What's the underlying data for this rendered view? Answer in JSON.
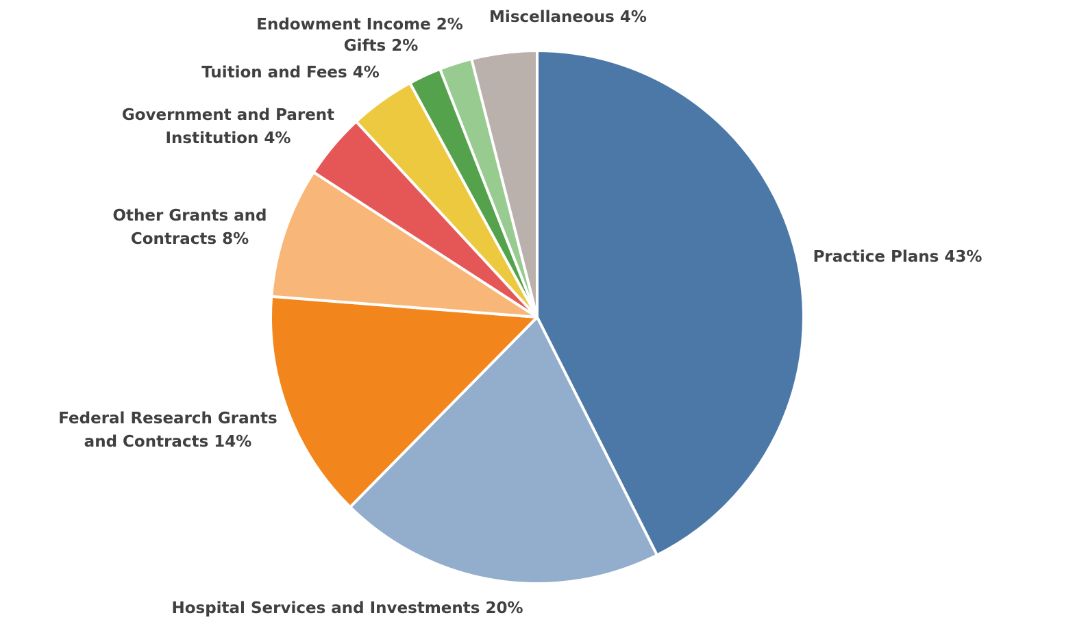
{
  "chart_data": {
    "type": "pie",
    "title": "",
    "start_angle_deg": 0,
    "direction": "clockwise",
    "legend": "none",
    "slices": [
      {
        "name": "Practice Plans",
        "value": 43,
        "label_lines": [
          "Practice Plans 43%"
        ],
        "color": "#4C78A8"
      },
      {
        "name": "Hospital Services and Investments",
        "value": 20,
        "label_lines": [
          "Hospital Services and Investments 20%"
        ],
        "color": "#93AECC"
      },
      {
        "name": "Federal Research Grants and Contracts",
        "value": 14,
        "label_lines": [
          "Federal Research Grants",
          "and Contracts 14%"
        ],
        "color": "#F2861C"
      },
      {
        "name": "Other Grants and Contracts",
        "value": 8,
        "label_lines": [
          "Other Grants and",
          "Contracts 8%"
        ],
        "color": "#F8B779"
      },
      {
        "name": "Government and Parent Institution",
        "value": 4,
        "label_lines": [
          "Government and Parent",
          "Institution 4%"
        ],
        "color": "#E45756"
      },
      {
        "name": "Tuition and Fees",
        "value": 4,
        "label_lines": [
          "Tuition and Fees 4%"
        ],
        "color": "#ECC93E"
      },
      {
        "name": "Endowment Income",
        "value": 2,
        "label_lines": [
          "Endowment Income 2%"
        ],
        "color": "#54A24B"
      },
      {
        "name": "Gifts",
        "value": 2,
        "label_lines": [
          "Gifts 2%"
        ],
        "color": "#98CB90"
      },
      {
        "name": "Miscellaneous",
        "value": 4,
        "label_lines": [
          "Miscellaneous 4%"
        ],
        "color": "#BAB0AC"
      }
    ]
  }
}
